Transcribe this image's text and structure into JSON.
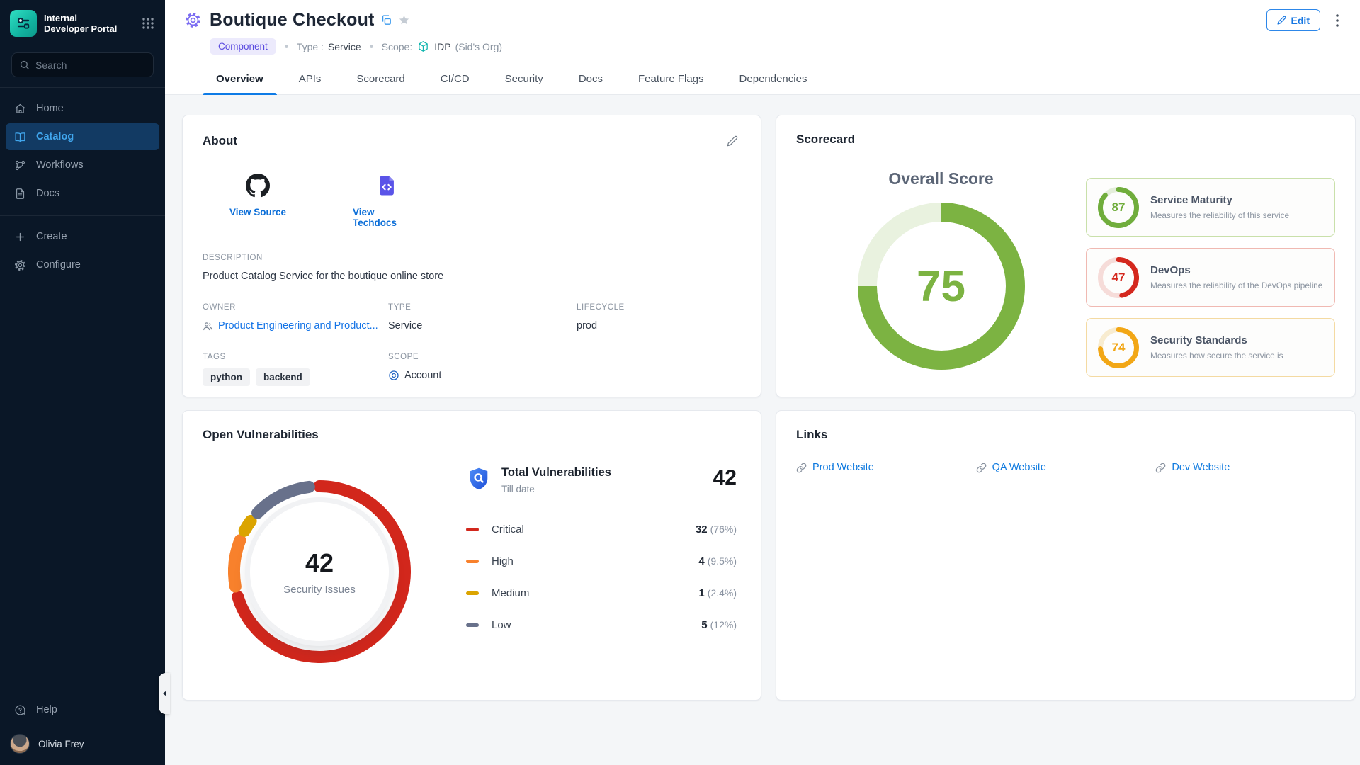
{
  "sidebar": {
    "logo_line1": "Internal",
    "logo_line2": "Developer Portal",
    "search_placeholder": "Search",
    "nav": [
      {
        "label": "Home"
      },
      {
        "label": "Catalog",
        "active": true
      },
      {
        "label": "Workflows"
      },
      {
        "label": "Docs"
      }
    ],
    "actions": [
      {
        "label": "Create"
      },
      {
        "label": "Configure"
      }
    ],
    "help_label": "Help",
    "user_name": "Olivia Frey"
  },
  "header": {
    "title": "Boutique Checkout",
    "kind_badge": "Component",
    "type_label": "Type :",
    "type_value": "Service",
    "scope_label": "Scope:",
    "scope_value": "IDP",
    "scope_org": "(Sid's Org)",
    "edit_button": "Edit",
    "tabs": [
      {
        "label": "Overview",
        "active": true
      },
      {
        "label": "APIs"
      },
      {
        "label": "Scorecard"
      },
      {
        "label": "CI/CD"
      },
      {
        "label": "Security"
      },
      {
        "label": "Docs"
      },
      {
        "label": "Feature Flags"
      },
      {
        "label": "Dependencies"
      }
    ]
  },
  "about": {
    "title": "About",
    "view_source_label": "View Source",
    "view_techdocs_label": "View Techdocs",
    "description_label": "DESCRIPTION",
    "description": "Product Catalog Service for the boutique online store",
    "owner_label": "OWNER",
    "owner": "Product Engineering and Product...",
    "type_label": "TYPE",
    "type": "Service",
    "lifecycle_label": "LIFECYCLE",
    "lifecycle": "prod",
    "tags_label": "TAGS",
    "tags": [
      "python",
      "backend"
    ],
    "scope_label": "SCOPE",
    "scope": "Account"
  },
  "scorecard": {
    "title": "Scorecard",
    "overall_label": "Overall Score",
    "overall_score": "75",
    "cards": [
      {
        "score": "87",
        "name": "Service Maturity",
        "description": "Measures the reliability of this service",
        "color": "#70ad3c",
        "border_color": "#c9e0aa"
      },
      {
        "score": "47",
        "name": "DevOps",
        "description": "Measures the reliability of the DevOps pipeline",
        "color": "#d4281e",
        "border_color": "#f0b9b2"
      },
      {
        "score": "74",
        "name": "Security Standards",
        "description": "Measures how secure the service is",
        "color": "#f2a716",
        "border_color": "#f4daa2"
      }
    ]
  },
  "vulnerabilities": {
    "title": "Open Vulnerabilities",
    "total": "42",
    "center_label": "Security Issues",
    "summary_title": "Total Vulnerabilities",
    "summary_subtitle": "Till date",
    "rows": [
      {
        "label": "Critical",
        "count": "32",
        "pct": "(76%)",
        "color": "#d2271c"
      },
      {
        "label": "High",
        "count": "4",
        "pct": "(9.5%)",
        "color": "#f8812c"
      },
      {
        "label": "Medium",
        "count": "1",
        "pct": "(2.4%)",
        "color": "#dba400"
      },
      {
        "label": "Low",
        "count": "5",
        "pct": "(12%)",
        "color": "#68718b"
      }
    ]
  },
  "links_card": {
    "title": "Links",
    "links": [
      {
        "label": "Prod Website"
      },
      {
        "label": "QA Website"
      },
      {
        "label": "Dev Website"
      }
    ]
  },
  "chart_data": [
    {
      "type": "donut",
      "title": "Overall Score",
      "value": 75,
      "max": 100,
      "size": 236,
      "thickness": 27,
      "track_color": "#e9f2df",
      "round_caps": false,
      "center_text": "75",
      "segments": [
        {
          "label": "Overall Score",
          "value": 75,
          "color": "#7cb342"
        }
      ]
    },
    {
      "type": "donut",
      "title": "Service Maturity",
      "value": 87,
      "max": 100,
      "size": 58,
      "thickness": 7,
      "track_color": "#e4eeda",
      "round_caps": true,
      "segments": [
        {
          "label": "Service Maturity",
          "value": 87,
          "color": "#70ad3c"
        }
      ]
    },
    {
      "type": "donut",
      "title": "DevOps",
      "value": 47,
      "max": 100,
      "size": 58,
      "thickness": 7,
      "track_color": "#f6dcd9",
      "round_caps": true,
      "segments": [
        {
          "label": "DevOps",
          "value": 47,
          "color": "#d4281e"
        }
      ]
    },
    {
      "type": "donut",
      "title": "Security Standards",
      "value": 74,
      "max": 100,
      "size": 58,
      "thickness": 7,
      "track_color": "#f8ecd0",
      "round_caps": true,
      "segments": [
        {
          "label": "Security Standards",
          "value": 74,
          "color": "#f2a716"
        }
      ]
    },
    {
      "type": "donut",
      "title": "Open Vulnerabilities",
      "center_text": "42",
      "center_label": "Security Issues",
      "size": 258,
      "thickness": 17,
      "gap_deg": 7,
      "round_caps": true,
      "segments": [
        {
          "label": "Critical",
          "value": 32,
          "color": "#d2271c"
        },
        {
          "label": "High",
          "value": 4,
          "color": "#f8812c"
        },
        {
          "label": "Medium",
          "value": 1,
          "color": "#dba400"
        },
        {
          "label": "Low",
          "value": 5,
          "color": "#68718b"
        }
      ]
    }
  ]
}
